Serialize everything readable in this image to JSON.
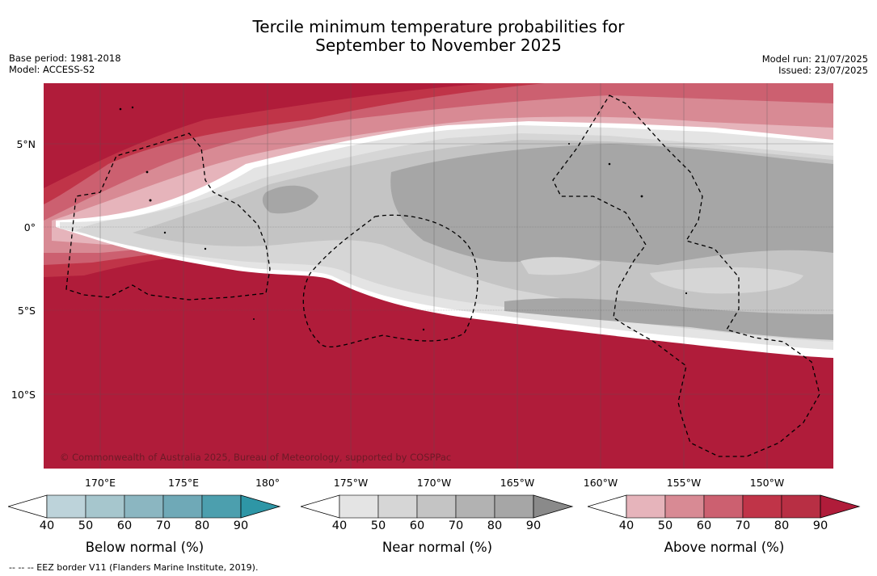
{
  "title": {
    "line1": "Tercile minimum temperature probabilities for",
    "line2": "September to November 2025"
  },
  "meta": {
    "base_period": "Base period: 1981-2018",
    "model": "Model: ACCESS-S2",
    "model_run": "Model run: 21/07/2025",
    "issued": "Issued: 23/07/2025"
  },
  "map": {
    "lat_labels": [
      "5°N",
      "0°",
      "5°S",
      "10°S"
    ],
    "lon_labels": [
      "170°E",
      "175°E",
      "180°",
      "175°W",
      "170°W",
      "165°W",
      "160°W",
      "155°W",
      "150°W"
    ],
    "copyright": "© Commonwealth of Australia 2025, Bureau of Meteorology, supported by COSPPac",
    "colors": {
      "above_90": "#b01c3a",
      "above_80": "#c03448",
      "above_70": "#cc6070",
      "above_60": "#d88a94",
      "above_50": "#e6b4bb",
      "near_80": "#a6a6a6",
      "near_70": "#c4c4c4",
      "near_60": "#d6d6d6",
      "near_50": "#e4e4e4",
      "white": "#ffffff"
    }
  },
  "colorbars": [
    {
      "label": "Below normal (%)",
      "ticks": [
        "40",
        "50",
        "60",
        "70",
        "80",
        "90"
      ],
      "colors": [
        "#bdd3da",
        "#a6c6cd",
        "#8bb6c1",
        "#6fa9b7",
        "#4c9fae",
        "#2e96a6"
      ]
    },
    {
      "label": "Near normal (%)",
      "ticks": [
        "40",
        "50",
        "60",
        "70",
        "80",
        "90"
      ],
      "colors": [
        "#e4e4e4",
        "#d6d6d6",
        "#c4c4c4",
        "#b2b2b2",
        "#a6a6a6",
        "#8a8a8a"
      ]
    },
    {
      "label": "Above normal (%)",
      "ticks": [
        "40",
        "50",
        "60",
        "70",
        "80",
        "90"
      ],
      "colors": [
        "#e6b4bb",
        "#d88a94",
        "#cc6070",
        "#c03448",
        "#b82f44",
        "#b01c3a"
      ]
    }
  ],
  "footer": "--  --  -- EEZ border V11 (Flanders Marine Institute, 2019)."
}
